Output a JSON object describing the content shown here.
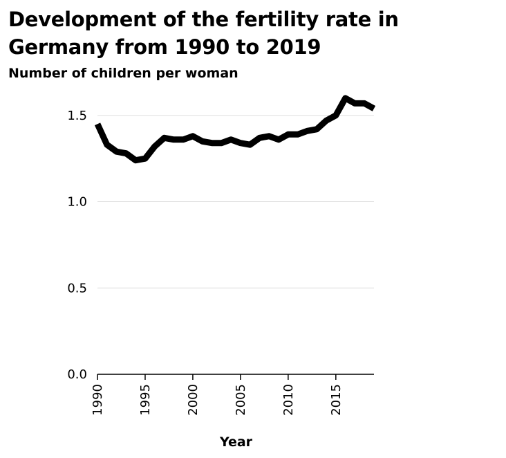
{
  "chart_data": {
    "type": "line",
    "title": "Development of the fertility rate in Germany from 1990 to 2019",
    "ylabel": "Number of children per woman",
    "xlabel": "Year",
    "x": [
      1990,
      1991,
      1992,
      1993,
      1994,
      1995,
      1996,
      1997,
      1998,
      1999,
      2000,
      2001,
      2002,
      2003,
      2004,
      2005,
      2006,
      2007,
      2008,
      2009,
      2010,
      2011,
      2012,
      2013,
      2014,
      2015,
      2016,
      2017,
      2018,
      2019
    ],
    "series": [
      {
        "values": [
          1.45,
          1.33,
          1.29,
          1.28,
          1.24,
          1.25,
          1.32,
          1.37,
          1.36,
          1.36,
          1.38,
          1.35,
          1.34,
          1.34,
          1.36,
          1.34,
          1.33,
          1.37,
          1.38,
          1.36,
          1.39,
          1.39,
          1.41,
          1.42,
          1.47,
          1.5,
          1.6,
          1.57,
          1.57,
          1.54
        ]
      }
    ],
    "xlim": [
      1990,
      2019
    ],
    "ylim": [
      0,
      1.6
    ],
    "xticks": [
      "1990",
      "1995",
      "2000",
      "2005",
      "2010",
      "2015"
    ],
    "yticks": [
      "0.0",
      "0.5",
      "1.0",
      "1.5"
    ],
    "grid": "horizontal",
    "line_color": "#000000"
  }
}
